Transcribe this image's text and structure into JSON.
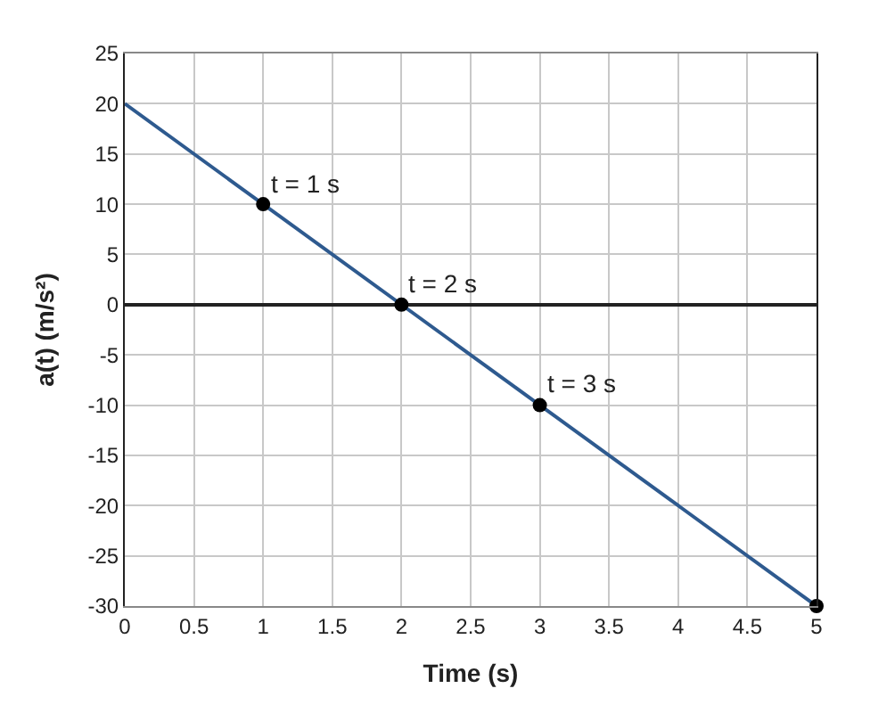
{
  "chart_data": {
    "type": "line",
    "xlabel": "Time (s)",
    "ylabel": "a(t) (m/s²)",
    "series": [
      {
        "color": "#2e5a8f",
        "x": [
          0,
          5
        ],
        "values": [
          20,
          -30
        ],
        "marker": "none"
      },
      {
        "type": "scatter",
        "color": "#000000",
        "x": [
          1,
          2,
          3,
          5
        ],
        "values": [
          10,
          0,
          -10,
          -30
        ],
        "marker": "circle"
      }
    ],
    "xlim": [
      0,
      5
    ],
    "xticks": [
      0,
      0.5,
      1,
      1.5,
      2,
      2.5,
      3,
      3.5,
      4,
      4.5,
      5
    ],
    "ylim": [
      -30,
      25
    ],
    "yticks": [
      -30,
      -25,
      -20,
      -15,
      -10,
      -5,
      0,
      5,
      10,
      15,
      20,
      25
    ],
    "annotations": [
      {
        "text": "t = 1 s",
        "x": 1,
        "y": 10
      },
      {
        "text": "t = 2 s",
        "x": 2,
        "y": 0
      },
      {
        "text": "t = 3 s",
        "x": 3,
        "y": -10
      }
    ],
    "grid": true
  }
}
